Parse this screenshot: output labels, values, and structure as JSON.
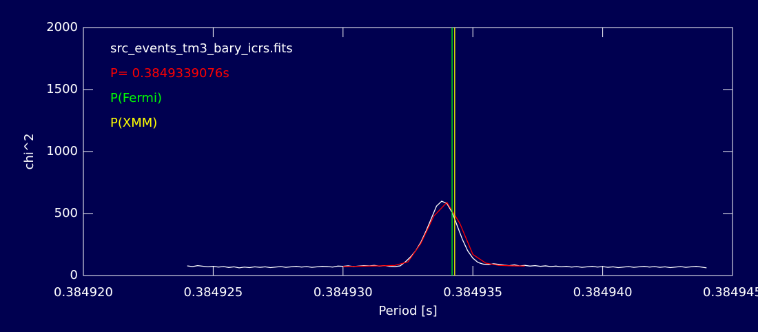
{
  "chart_data": {
    "type": "line",
    "x_label": "Period [s]",
    "y_label": "chi^2",
    "xlim": [
      0.38492,
      0.384945
    ],
    "ylim": [
      0,
      2000
    ],
    "xticks": [
      {
        "value": 0.38492,
        "label": "0.384920"
      },
      {
        "value": 0.384925,
        "label": "0.384925"
      },
      {
        "value": 0.38493,
        "label": "0.384930"
      },
      {
        "value": 0.384935,
        "label": "0.384935"
      },
      {
        "value": 0.38494,
        "label": "0.384940"
      },
      {
        "value": 0.384945,
        "label": "0.384945"
      }
    ],
    "yticks": [
      0,
      500,
      1000,
      1500,
      2000
    ],
    "axis_color": "#ffffff",
    "series": [
      {
        "name": "src_events_tm3_bary_icrs.fits",
        "color": "#ffffff",
        "x": [
          0.384924,
          0.3849242,
          0.3849244,
          0.3849246,
          0.3849248,
          0.384925,
          0.3849252,
          0.3849254,
          0.3849256,
          0.3849258,
          0.384926,
          0.3849262,
          0.3849264,
          0.3849266,
          0.3849268,
          0.384927,
          0.3849272,
          0.3849274,
          0.3849276,
          0.3849278,
          0.384928,
          0.3849282,
          0.3849284,
          0.3849286,
          0.3849288,
          0.384929,
          0.3849292,
          0.3849294,
          0.3849296,
          0.3849298,
          0.38493,
          0.3849302,
          0.3849304,
          0.3849306,
          0.3849308,
          0.384931,
          0.3849312,
          0.3849314,
          0.3849316,
          0.3849318,
          0.384932,
          0.3849322,
          0.3849324,
          0.3849326,
          0.3849328,
          0.384933,
          0.3849332,
          0.3849334,
          0.3849336,
          0.3849338,
          0.384934,
          0.3849342,
          0.3849344,
          0.3849346,
          0.3849348,
          0.384935,
          0.3849352,
          0.3849354,
          0.3849356,
          0.3849358,
          0.384936,
          0.3849362,
          0.3849364,
          0.3849366,
          0.3849368,
          0.384937,
          0.3849372,
          0.3849374,
          0.3849376,
          0.3849378,
          0.384938,
          0.3849382,
          0.3849384,
          0.3849386,
          0.3849388,
          0.384939,
          0.3849392,
          0.3849394,
          0.3849396,
          0.3849398,
          0.38494,
          0.3849402,
          0.3849404,
          0.3849406,
          0.3849408,
          0.384941,
          0.3849412,
          0.3849414,
          0.3849416,
          0.3849418,
          0.384942,
          0.3849422,
          0.3849424,
          0.3849426,
          0.3849428,
          0.384943,
          0.3849432,
          0.3849434,
          0.3849436,
          0.3849438,
          0.384944
        ],
        "values": [
          78,
          72,
          80,
          75,
          70,
          74,
          68,
          72,
          65,
          70,
          62,
          68,
          64,
          70,
          66,
          70,
          64,
          68,
          72,
          66,
          70,
          74,
          68,
          72,
          66,
          70,
          74,
          72,
          68,
          76,
          74,
          78,
          72,
          76,
          80,
          78,
          82,
          76,
          80,
          74,
          72,
          78,
          110,
          150,
          200,
          270,
          360,
          460,
          560,
          600,
          580,
          510,
          400,
          290,
          200,
          140,
          105,
          92,
          88,
          95,
          90,
          84,
          80,
          86,
          78,
          82,
          76,
          80,
          74,
          78,
          72,
          76,
          70,
          74,
          68,
          72,
          66,
          70,
          74,
          68,
          72,
          66,
          70,
          64,
          68,
          72,
          66,
          70,
          74,
          68,
          72,
          66,
          70,
          64,
          68,
          72,
          66,
          70,
          74,
          68,
          62
        ]
      },
      {
        "name": "P= 0.3849339076s",
        "color": "#ff0000",
        "x": [
          0.38493,
          0.3849305,
          0.384931,
          0.3849315,
          0.384932,
          0.3849325,
          0.384933,
          0.3849335,
          0.384934,
          0.3849345,
          0.384935,
          0.3849355,
          0.384936,
          0.3849365,
          0.384937
        ],
        "values": [
          72,
          74,
          76,
          78,
          82,
          110,
          260,
          480,
          590,
          420,
          170,
          100,
          82,
          78,
          76
        ]
      }
    ],
    "vlines": [
      {
        "name": "P(Fermi)",
        "color": "#00ff00",
        "x": 0.3849342
      },
      {
        "name": "P(XMM)",
        "color": "#ffff00",
        "x": 0.3849343
      }
    ]
  }
}
